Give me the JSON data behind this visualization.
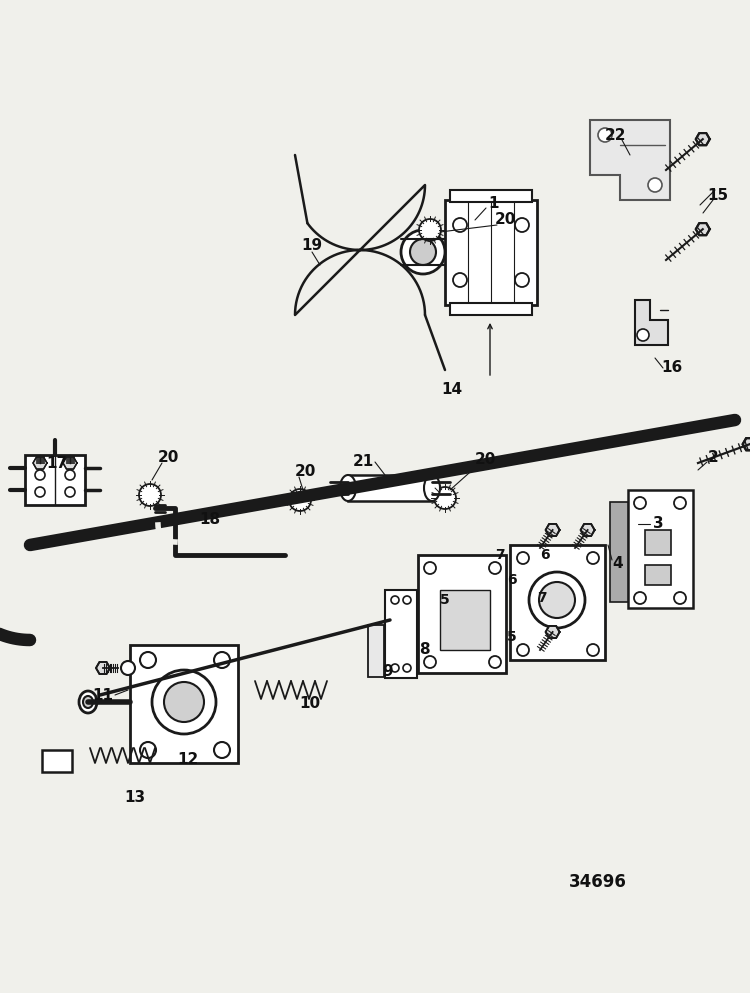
{
  "bg_color": "#f0f0eb",
  "line_color": "#1a1a1a",
  "diagram_number": "34696",
  "figsize": [
    7.5,
    9.93
  ],
  "dpi": 100
}
